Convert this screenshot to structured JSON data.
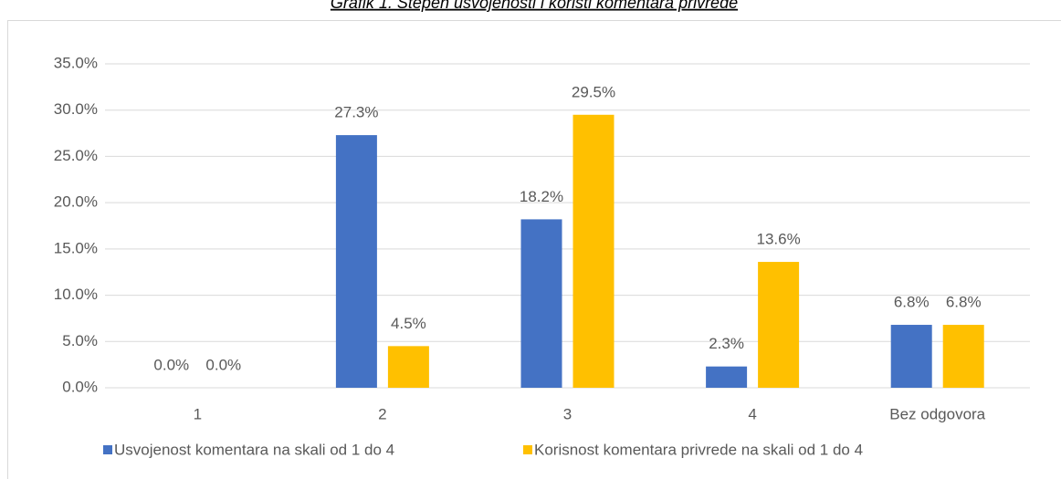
{
  "chart_data": {
    "type": "bar",
    "title": "Grafik 1. Stepen usvojenosti i koristi komentara privrede",
    "categories": [
      "1",
      "2",
      "3",
      "4",
      "Bez odgovora"
    ],
    "series": [
      {
        "name": "Usvojenost komentara na skali od 1 do 4",
        "color": "#4472c4",
        "values": [
          0,
          27.3,
          18.2,
          2.3,
          6.8
        ],
        "value_labels": [
          "0.0%",
          "27.3%",
          "18.2%",
          "2.3%",
          "6.8%"
        ]
      },
      {
        "name": "Korisnost komentara privrede na skali od 1 do 4",
        "color": "#ffc000",
        "values": [
          0,
          4.5,
          29.5,
          13.6,
          6.8
        ],
        "value_labels": [
          "0.0%",
          "4.5%",
          "29.5%",
          "13.6%",
          "6.8%"
        ]
      }
    ],
    "ylim": [
      0,
      35
    ],
    "yticks": [
      {
        "value": 0,
        "label": "0.0%"
      },
      {
        "value": 5,
        "label": "5.0%"
      },
      {
        "value": 10,
        "label": "10.0%"
      },
      {
        "value": 15,
        "label": "15.0%"
      },
      {
        "value": 20,
        "label": "20.0%"
      },
      {
        "value": 25,
        "label": "25.0%"
      },
      {
        "value": 30,
        "label": "30.0%"
      },
      {
        "value": 35,
        "label": "35.0%"
      }
    ],
    "grid": true,
    "legend": "bottom"
  }
}
